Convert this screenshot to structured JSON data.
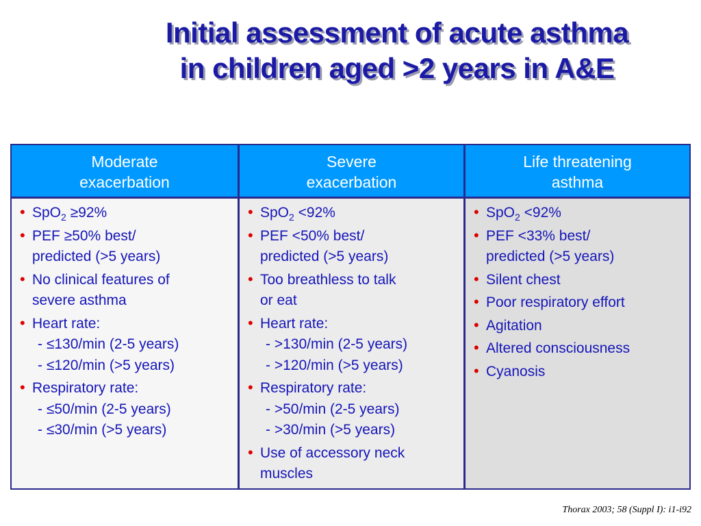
{
  "title": {
    "line1": "Initial assessment of acute asthma",
    "line2": "in children aged >2 years in A&E"
  },
  "columns": [
    {
      "header": [
        "Moderate",
        "exacerbation"
      ],
      "items": [
        {
          "lines": [
            "SpO"
          ],
          "sub": "2",
          "after": " ≥92%"
        },
        {
          "lines": [
            "PEF ≥50% best/",
            "predicted (>5 years)"
          ]
        },
        {
          "lines": [
            "No clinical features of",
            "severe asthma"
          ]
        },
        {
          "lines": [
            "Heart rate:"
          ],
          "subitems": [
            "- ≤130/min (2-5 years)",
            "- ≤120/min (>5 years)"
          ]
        },
        {
          "lines": [
            "Respiratory rate:"
          ],
          "subitems": [
            "- ≤50/min (2-5 years)",
            "- ≤30/min (>5 years)"
          ]
        }
      ]
    },
    {
      "header": [
        "Severe",
        "exacerbation"
      ],
      "items": [
        {
          "lines": [
            "SpO"
          ],
          "sub": "2",
          "after": " <92%"
        },
        {
          "lines": [
            "PEF <50% best/",
            "predicted (>5 years)"
          ]
        },
        {
          "lines": [
            "Too breathless to talk",
            "or eat"
          ]
        },
        {
          "lines": [
            "Heart rate:"
          ],
          "subitems": [
            "- >130/min (2-5 years)",
            "- >120/min (>5 years)"
          ]
        },
        {
          "lines": [
            "Respiratory rate:"
          ],
          "subitems": [
            "- >50/min (2-5 years)",
            "- >30/min (>5 years)"
          ]
        },
        {
          "lines": [
            "Use of accessory neck",
            "muscles"
          ]
        }
      ]
    },
    {
      "header": [
        "Life threatening",
        "asthma"
      ],
      "items": [
        {
          "lines": [
            "SpO"
          ],
          "sub": "2",
          "after": " <92%"
        },
        {
          "lines": [
            "PEF <33% best/",
            "predicted (>5 years)"
          ]
        },
        {
          "lines": [
            "Silent chest"
          ]
        },
        {
          "lines": [
            "Poor respiratory effort"
          ]
        },
        {
          "lines": [
            "Agitation"
          ]
        },
        {
          "lines": [
            "Altered consciousness"
          ]
        },
        {
          "lines": [
            "Cyanosis"
          ]
        }
      ]
    }
  ],
  "bullet_glyph": "•",
  "citation": "Thorax 2003; 58 (Suppl I): i1-i92",
  "colors": {
    "title": "#1a1aa6",
    "header_bg": "#0099ff",
    "text": "#1515b8",
    "bullet": "#dd0000",
    "border": "#2a2a8c"
  }
}
